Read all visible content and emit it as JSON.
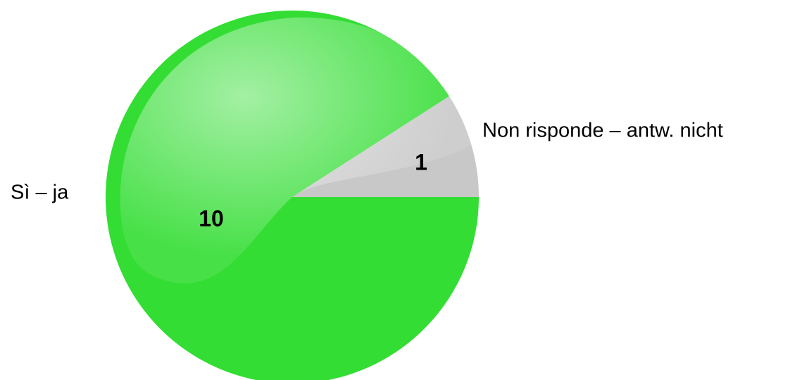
{
  "chart_data": {
    "type": "pie",
    "categories": [
      "Sì – ja",
      "Non risponde – antw. nicht"
    ],
    "values": [
      10,
      1
    ],
    "colors": [
      "#33dd33",
      "#c8c8c8"
    ]
  }
}
